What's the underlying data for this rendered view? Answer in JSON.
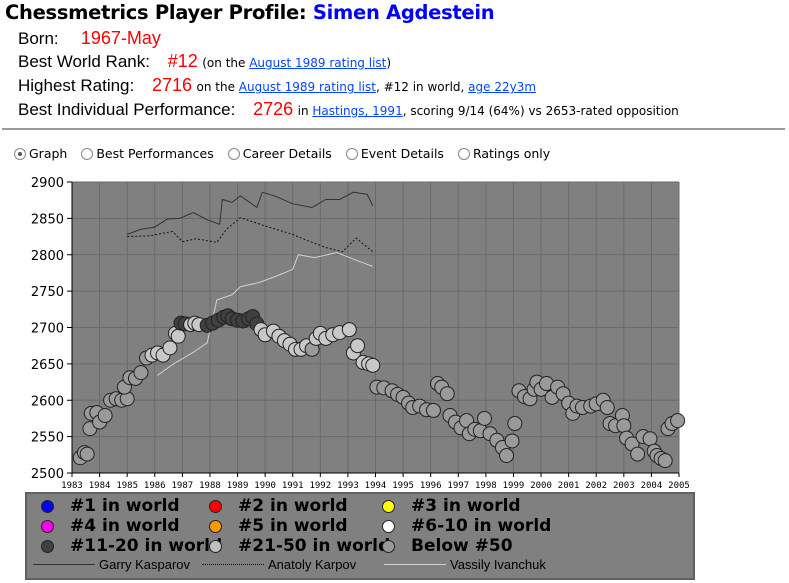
{
  "header": {
    "title_prefix": "Chessmetrics Player Profile: ",
    "player_name": "Simen Agdestein"
  },
  "born": {
    "label": "Born:",
    "value": "1967-May"
  },
  "best_rank": {
    "label": "Best World Rank:",
    "value": "#12",
    "pre": "(on the ",
    "link": "August 1989 rating list",
    "post": ")"
  },
  "highest": {
    "label": "Highest Rating:",
    "value": "2716",
    "pre": "on the ",
    "link": "August 1989 rating list",
    "mid": ", #12 in world, ",
    "link2": "age 22y3m"
  },
  "best_perf": {
    "label": "Best Individual Performance:",
    "value": "2726",
    "pre": "in ",
    "link": "Hastings, 1991",
    "post": ", scoring 9/14 (64%) vs 2653-rated opposition"
  },
  "view_options": [
    {
      "label": "Graph",
      "selected": true
    },
    {
      "label": "Best Performances",
      "selected": false
    },
    {
      "label": "Career Details",
      "selected": false
    },
    {
      "label": "Event Details",
      "selected": false
    },
    {
      "label": "Ratings only",
      "selected": false
    }
  ],
  "legend": {
    "ranks": [
      {
        "label": "#1 in world",
        "color": "#0000ff"
      },
      {
        "label": "#2 in world",
        "color": "#ff0000"
      },
      {
        "label": "#3 in world",
        "color": "#ffff00"
      },
      {
        "label": "#4 in world",
        "color": "#ff00ff"
      },
      {
        "label": "#5 in world",
        "color": "#ff9900"
      },
      {
        "label": "#6-10 in world",
        "color": "#ffffff"
      },
      {
        "label": "#11-20 in world",
        "color": "#404040"
      },
      {
        "label": "#21-50 in world",
        "color": "#c0c0c0"
      },
      {
        "label": "Below #50",
        "color": "#999999"
      }
    ],
    "lines": [
      {
        "label": "Garry Kasparov",
        "style": "solid",
        "color": "#333333"
      },
      {
        "label": "Anatoly Karpov",
        "style": "dotted",
        "color": "#111111"
      },
      {
        "label": "Vassily Ivanchuk",
        "style": "solid",
        "color": "#d0d0d0"
      }
    ]
  },
  "chart_data": {
    "type": "scatter",
    "ylim": [
      2500,
      2900
    ],
    "xlim": [
      1983,
      2005
    ],
    "yticks": [
      2500,
      2550,
      2600,
      2650,
      2700,
      2750,
      2800,
      2850,
      2900
    ],
    "xticks": [
      "1983",
      "1984",
      "1985",
      "1986",
      "1987",
      "1988",
      "1989",
      "1990",
      "1991",
      "1992",
      "1993",
      "1994",
      "1995",
      "1996",
      "1997",
      "1998",
      "1999",
      "2000",
      "2001",
      "2002",
      "2003",
      "2004",
      "2005"
    ],
    "grid": true,
    "background": "#808080",
    "points": [
      [
        1983.3,
        2521,
        "b"
      ],
      [
        1983.45,
        2528,
        "b"
      ],
      [
        1983.55,
        2526,
        "b"
      ],
      [
        1983.65,
        2561,
        "b"
      ],
      [
        1983.7,
        2582,
        "b"
      ],
      [
        1983.9,
        2583,
        "b"
      ],
      [
        1984.0,
        2570,
        "b"
      ],
      [
        1984.2,
        2579,
        "b"
      ],
      [
        1984.4,
        2600,
        "b"
      ],
      [
        1984.6,
        2602,
        "b"
      ],
      [
        1984.8,
        2600,
        "b"
      ],
      [
        1985.0,
        2602,
        "b"
      ],
      [
        1984.9,
        2618,
        "b"
      ],
      [
        1985.1,
        2631,
        "b"
      ],
      [
        1985.3,
        2630,
        "b"
      ],
      [
        1985.5,
        2638,
        "b"
      ],
      [
        1985.7,
        2658,
        "b"
      ],
      [
        1985.9,
        2662,
        "l"
      ],
      [
        1986.1,
        2665,
        "l"
      ],
      [
        1986.3,
        2662,
        "l"
      ],
      [
        1986.55,
        2672,
        "l"
      ],
      [
        1986.75,
        2692,
        "l"
      ],
      [
        1986.85,
        2688,
        "l"
      ],
      [
        1986.95,
        2706,
        "d"
      ],
      [
        1987.1,
        2705,
        "d"
      ],
      [
        1987.3,
        2704,
        "l"
      ],
      [
        1987.45,
        2706,
        "l"
      ],
      [
        1987.6,
        2704,
        "l"
      ],
      [
        1987.9,
        2703,
        "d"
      ],
      [
        1988.1,
        2706,
        "d"
      ],
      [
        1988.3,
        2710,
        "d"
      ],
      [
        1988.5,
        2714,
        "d"
      ],
      [
        1988.65,
        2716,
        "d"
      ],
      [
        1988.8,
        2712,
        "d"
      ],
      [
        1989.0,
        2710,
        "d"
      ],
      [
        1989.2,
        2709,
        "d"
      ],
      [
        1989.4,
        2712,
        "d"
      ],
      [
        1989.55,
        2715,
        "d"
      ],
      [
        1989.7,
        2705,
        "d"
      ],
      [
        1989.85,
        2697,
        "l"
      ],
      [
        1990.0,
        2690,
        "l"
      ],
      [
        1990.3,
        2695,
        "l"
      ],
      [
        1990.5,
        2688,
        "l"
      ],
      [
        1990.7,
        2682,
        "l"
      ],
      [
        1990.9,
        2677,
        "l"
      ],
      [
        1991.1,
        2670,
        "l"
      ],
      [
        1991.3,
        2670,
        "l"
      ],
      [
        1991.5,
        2675,
        "l"
      ],
      [
        1991.7,
        2670,
        "b"
      ],
      [
        1991.85,
        2685,
        "l"
      ],
      [
        1992.0,
        2692,
        "l"
      ],
      [
        1992.2,
        2685,
        "l"
      ],
      [
        1992.45,
        2690,
        "l"
      ],
      [
        1992.7,
        2693,
        "l"
      ],
      [
        1993.05,
        2697,
        "l"
      ],
      [
        1993.2,
        2665,
        "l"
      ],
      [
        1993.35,
        2675,
        "l"
      ],
      [
        1993.55,
        2652,
        "l"
      ],
      [
        1993.75,
        2650,
        "l"
      ],
      [
        1993.9,
        2648,
        "l"
      ],
      [
        1994.05,
        2618,
        "b"
      ],
      [
        1994.3,
        2617,
        "b"
      ],
      [
        1994.6,
        2613,
        "b"
      ],
      [
        1994.8,
        2608,
        "b"
      ],
      [
        1995.0,
        2604,
        "b"
      ],
      [
        1995.2,
        2596,
        "b"
      ],
      [
        1995.35,
        2590,
        "b"
      ],
      [
        1995.6,
        2592,
        "b"
      ],
      [
        1995.85,
        2587,
        "b"
      ],
      [
        1996.1,
        2586,
        "b"
      ],
      [
        1996.25,
        2623,
        "b"
      ],
      [
        1996.4,
        2618,
        "b"
      ],
      [
        1996.6,
        2609,
        "b"
      ],
      [
        1996.7,
        2579,
        "b"
      ],
      [
        1996.9,
        2570,
        "b"
      ],
      [
        1997.1,
        2562,
        "b"
      ],
      [
        1997.3,
        2572,
        "b"
      ],
      [
        1997.4,
        2554,
        "b"
      ],
      [
        1997.6,
        2560,
        "b"
      ],
      [
        1997.8,
        2558,
        "b"
      ],
      [
        1997.95,
        2575,
        "b"
      ],
      [
        1998.15,
        2554,
        "b"
      ],
      [
        1998.4,
        2545,
        "b"
      ],
      [
        1998.6,
        2535,
        "b"
      ],
      [
        1998.75,
        2524,
        "b"
      ],
      [
        1998.95,
        2544,
        "b"
      ],
      [
        1999.05,
        2568,
        "b"
      ],
      [
        1999.2,
        2613,
        "b"
      ],
      [
        1999.4,
        2605,
        "b"
      ],
      [
        1999.6,
        2602,
        "b"
      ],
      [
        1999.75,
        2615,
        "b"
      ],
      [
        1999.85,
        2625,
        "b"
      ],
      [
        2000.0,
        2615,
        "b"
      ],
      [
        2000.2,
        2623,
        "b"
      ],
      [
        2000.4,
        2604,
        "b"
      ],
      [
        2000.6,
        2618,
        "b"
      ],
      [
        2000.8,
        2609,
        "b"
      ],
      [
        2001.0,
        2596,
        "b"
      ],
      [
        2001.15,
        2582,
        "b"
      ],
      [
        2001.3,
        2592,
        "b"
      ],
      [
        2001.5,
        2590,
        "b"
      ],
      [
        2001.8,
        2592,
        "b"
      ],
      [
        2002.0,
        2595,
        "b"
      ],
      [
        2002.25,
        2600,
        "b"
      ],
      [
        2002.4,
        2590,
        "b"
      ],
      [
        2002.5,
        2568,
        "b"
      ],
      [
        2002.7,
        2565,
        "b"
      ],
      [
        2002.95,
        2579,
        "b"
      ],
      [
        2003.0,
        2565,
        "b"
      ],
      [
        2003.1,
        2548,
        "b"
      ],
      [
        2003.3,
        2540,
        "b"
      ],
      [
        2003.5,
        2526,
        "b"
      ],
      [
        2003.7,
        2550,
        "b"
      ],
      [
        2003.95,
        2547,
        "b"
      ],
      [
        2004.1,
        2530,
        "b"
      ],
      [
        2004.2,
        2524,
        "b"
      ],
      [
        2004.35,
        2520,
        "b"
      ],
      [
        2004.5,
        2517,
        "b"
      ],
      [
        2004.6,
        2561,
        "b"
      ],
      [
        2004.75,
        2568,
        "b"
      ],
      [
        2004.95,
        2572,
        "b"
      ]
    ],
    "lines": [
      {
        "name": "Garry Kasparov",
        "points": [
          [
            1985.0,
            2828
          ],
          [
            1985.5,
            2835
          ],
          [
            1986.0,
            2838
          ],
          [
            1986.45,
            2849
          ],
          [
            1986.9,
            2850
          ],
          [
            1987.4,
            2858
          ],
          [
            1987.9,
            2848
          ],
          [
            1988.35,
            2842
          ],
          [
            1988.45,
            2876
          ],
          [
            1988.8,
            2872
          ],
          [
            1989.1,
            2881
          ],
          [
            1989.7,
            2865
          ],
          [
            1989.9,
            2886
          ],
          [
            1990.4,
            2880
          ],
          [
            1991.0,
            2870
          ],
          [
            1991.7,
            2865
          ],
          [
            1992.2,
            2876
          ],
          [
            1992.7,
            2876
          ],
          [
            1993.2,
            2886
          ],
          [
            1993.7,
            2883
          ],
          [
            1993.9,
            2867
          ]
        ]
      },
      {
        "name": "Anatoly Karpov",
        "points": [
          [
            1985.0,
            2825
          ],
          [
            1985.8,
            2826
          ],
          [
            1986.65,
            2832
          ],
          [
            1987.0,
            2818
          ],
          [
            1987.5,
            2822
          ],
          [
            1988.25,
            2817
          ],
          [
            1988.6,
            2835
          ],
          [
            1989.1,
            2851
          ],
          [
            1990.05,
            2839
          ],
          [
            1991.0,
            2828
          ],
          [
            1991.5,
            2820
          ],
          [
            1992.2,
            2810
          ],
          [
            1992.8,
            2804
          ],
          [
            1993.3,
            2823
          ],
          [
            1993.9,
            2804
          ]
        ]
      },
      {
        "name": "Vassily Ivanchuk",
        "points": [
          [
            1986.1,
            2634
          ],
          [
            1986.6,
            2648
          ],
          [
            1987.4,
            2666
          ],
          [
            1987.9,
            2679
          ],
          [
            1988.25,
            2738
          ],
          [
            1988.8,
            2745
          ],
          [
            1989.1,
            2756
          ],
          [
            1989.8,
            2762
          ],
          [
            1990.5,
            2772
          ],
          [
            1991.0,
            2780
          ],
          [
            1991.2,
            2800
          ],
          [
            1991.8,
            2796
          ],
          [
            1992.6,
            2803
          ],
          [
            1993.4,
            2791
          ],
          [
            1993.9,
            2784
          ]
        ]
      }
    ]
  }
}
